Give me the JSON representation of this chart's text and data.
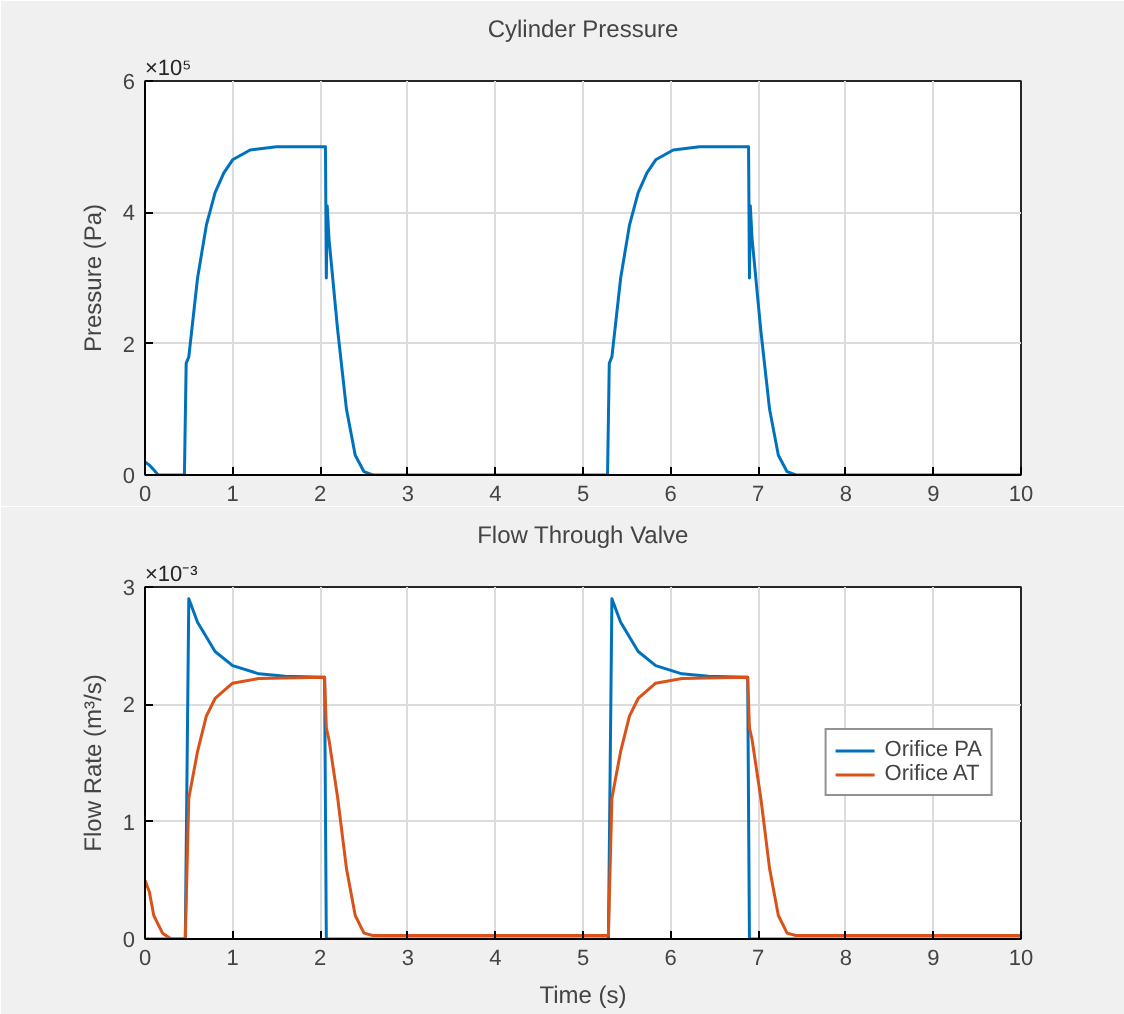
{
  "chart_data": [
    {
      "type": "line",
      "title": "Cylinder Pressure",
      "ylabel": "Pressure (Pa)",
      "annotations": [
        "×10⁵"
      ],
      "xlim": [
        0,
        10
      ],
      "xticks": [
        0,
        1,
        2,
        3,
        4,
        5,
        6,
        7,
        8,
        9,
        10
      ],
      "ylim": [
        0,
        6
      ],
      "yticks": [
        0,
        2,
        4,
        6
      ],
      "grid": true,
      "legend": false,
      "series": [
        {
          "color": "#0072bd",
          "x": [
            0,
            0.05,
            0.1,
            0.15,
            0.45,
            0.47,
            0.5,
            0.6,
            0.7,
            0.8,
            0.9,
            1.0,
            1.2,
            1.5,
            2.0,
            2.06,
            2.07,
            2.08,
            2.1,
            2.2,
            2.3,
            2.4,
            2.5,
            2.6,
            5.28,
            5.3,
            5.33,
            5.43,
            5.53,
            5.63,
            5.73,
            5.83,
            6.03,
            6.33,
            6.83,
            6.89,
            6.9,
            6.91,
            6.93,
            7.03,
            7.13,
            7.23,
            7.33,
            7.43,
            10
          ],
          "values": [
            0.2,
            0.15,
            0.08,
            0,
            0,
            1.7,
            1.8,
            3.0,
            3.8,
            4.3,
            4.6,
            4.8,
            4.95,
            5.0,
            5.0,
            5.0,
            3.0,
            4.1,
            3.6,
            2.2,
            1.0,
            0.3,
            0.05,
            0,
            0,
            1.7,
            1.8,
            3.0,
            3.8,
            4.3,
            4.6,
            4.8,
            4.95,
            5.0,
            5.0,
            5.0,
            3.0,
            4.1,
            3.6,
            2.2,
            1.0,
            0.3,
            0.05,
            0,
            0
          ]
        }
      ]
    },
    {
      "type": "line",
      "title": "Flow Through Valve",
      "xlabel": "Time (s)",
      "ylabel": "Flow Rate (m³/s)",
      "annotations": [
        "×10⁻³"
      ],
      "xlim": [
        0,
        10
      ],
      "xticks": [
        0,
        1,
        2,
        3,
        4,
        5,
        6,
        7,
        8,
        9,
        10
      ],
      "ylim": [
        0,
        3
      ],
      "yticks": [
        0,
        1,
        2,
        3
      ],
      "grid": true,
      "legend": "right",
      "series": [
        {
          "name": "Orifice PA",
          "color": "#0072bd",
          "x": [
            0,
            0.46,
            0.5,
            0.6,
            0.8,
            1.0,
            1.3,
            1.6,
            2.05,
            2.07,
            5.29,
            5.33,
            5.43,
            5.63,
            5.83,
            6.13,
            6.43,
            6.88,
            6.9,
            10
          ],
          "values": [
            0,
            0,
            2.9,
            2.7,
            2.45,
            2.33,
            2.26,
            2.24,
            2.23,
            0,
            0,
            2.9,
            2.7,
            2.45,
            2.33,
            2.26,
            2.24,
            2.23,
            0,
            0
          ]
        },
        {
          "name": "Orifice AT",
          "color": "#d95319",
          "x": [
            0,
            0.05,
            0.1,
            0.2,
            0.3,
            0.46,
            0.5,
            0.6,
            0.7,
            0.8,
            1.0,
            1.3,
            2.05,
            2.07,
            2.1,
            2.2,
            2.3,
            2.4,
            2.5,
            2.6,
            5.29,
            5.33,
            5.43,
            5.53,
            5.63,
            5.83,
            6.13,
            6.88,
            6.9,
            6.93,
            7.03,
            7.13,
            7.23,
            7.33,
            7.43,
            10
          ],
          "values": [
            0.5,
            0.4,
            0.2,
            0.05,
            0,
            0,
            1.2,
            1.6,
            1.9,
            2.05,
            2.18,
            2.22,
            2.23,
            1.8,
            1.7,
            1.2,
            0.6,
            0.2,
            0.05,
            0.03,
            0.03,
            1.2,
            1.6,
            1.9,
            2.05,
            2.18,
            2.22,
            2.23,
            1.8,
            1.7,
            1.2,
            0.6,
            0.2,
            0.05,
            0.03,
            0.03
          ]
        }
      ]
    }
  ]
}
